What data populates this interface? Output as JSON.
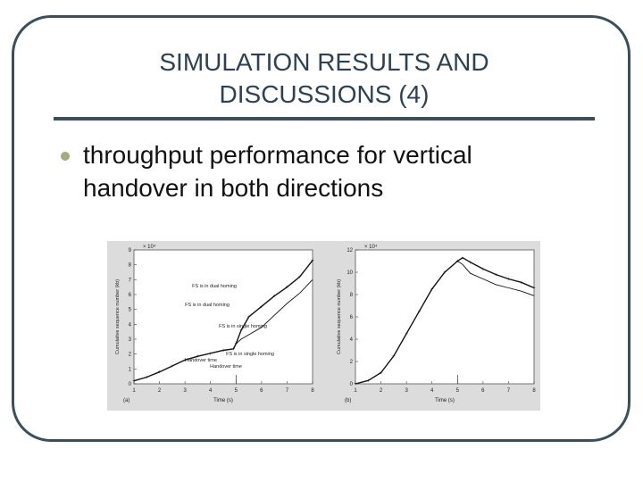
{
  "slide": {
    "title_line1": "SIMULATION RESULTS AND",
    "title_line2": "DISCUSSIONS (4)",
    "bullet_text": "throughput performance for vertical handover in both directions"
  },
  "figure": {
    "panels": [
      {
        "id": "a",
        "panel_label": "(a)",
        "x_label": "Time (s)",
        "y_label": "Cumulative sequence number (kb)",
        "exponent_label": "× 10⁴",
        "x_ticks": [
          "1",
          "2",
          "3",
          "4",
          "5",
          "6",
          "7",
          "8"
        ],
        "y_ticks": [
          "0",
          "1",
          "2",
          "3",
          "4",
          "5",
          "6",
          "7",
          "8",
          "9"
        ],
        "annotations": [
          "FS is in dual homing",
          "FS is in single homing",
          "Handover time"
        ]
      },
      {
        "id": "b",
        "panel_label": "(b)",
        "x_label": "Time (s)",
        "y_label": "Cumulative sequence number (kb)",
        "exponent_label": "× 10⁴",
        "x_ticks": [
          "1",
          "2",
          "3",
          "4",
          "5",
          "6",
          "7",
          "8"
        ],
        "y_ticks": [
          "0",
          "2",
          "4",
          "6",
          "8",
          "10",
          "12"
        ],
        "annotations": [
          "FS is in dual homing",
          "FS is in single homing",
          "Handover time"
        ]
      }
    ]
  },
  "chart_data": [
    {
      "type": "line",
      "title": "",
      "xlabel": "Time (s)",
      "ylabel": "Cumulative sequence number (kb)",
      "xlim": [
        1,
        8
      ],
      "ylim": [
        0,
        9
      ],
      "y_scale_note": "× 10⁴",
      "series": [
        {
          "x": [
            1,
            1.5,
            2,
            2.5,
            3,
            3.5,
            4,
            4.5,
            4.9,
            5.0,
            5.2,
            5.5,
            6,
            6.5,
            7,
            7.5,
            8
          ],
          "values": [
            0.2,
            0.45,
            0.8,
            1.2,
            1.6,
            1.85,
            2.05,
            2.25,
            2.35,
            2.7,
            3.6,
            4.5,
            5.2,
            5.9,
            6.5,
            7.2,
            8.3
          ]
        },
        {
          "x": [
            5.0,
            5.2,
            5.5,
            6,
            6.5,
            7,
            7.5,
            8
          ],
          "values": [
            2.7,
            3.0,
            3.3,
            3.8,
            4.6,
            5.4,
            6.1,
            7.0
          ]
        }
      ]
    },
    {
      "type": "line",
      "title": "",
      "xlabel": "Time (s)",
      "ylabel": "Cumulative sequence number (kb)",
      "xlim": [
        1,
        8
      ],
      "ylim": [
        0,
        12
      ],
      "y_scale_note": "× 10⁴",
      "series": [
        {
          "x": [
            1,
            1.5,
            2,
            2.5,
            3,
            3.5,
            4,
            4.5,
            5.0,
            5.2,
            5.5,
            6,
            6.5,
            7,
            7.5,
            8
          ],
          "values": [
            0.0,
            0.3,
            1.0,
            2.5,
            4.5,
            6.5,
            8.5,
            10.0,
            11.0,
            11.3,
            10.9,
            10.3,
            9.8,
            9.4,
            9.1,
            8.6
          ]
        },
        {
          "x": [
            5.0,
            5.2,
            5.5,
            6,
            6.5,
            7,
            7.5,
            8
          ],
          "values": [
            11.0,
            10.7,
            9.9,
            9.4,
            8.9,
            8.6,
            8.3,
            7.9
          ]
        }
      ]
    }
  ]
}
